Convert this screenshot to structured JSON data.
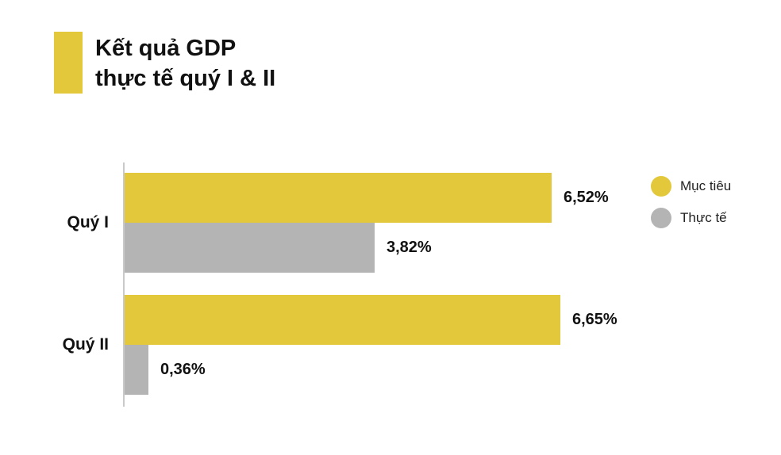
{
  "title": {
    "line1": "Kết quả GDP",
    "line2": "thực tế quý I & II"
  },
  "legend": {
    "items": [
      {
        "label": "Mục tiêu",
        "color": "#e3c83c"
      },
      {
        "label": "Thực tế",
        "color": "#b4b4b4"
      }
    ]
  },
  "chart_data": {
    "type": "bar",
    "orientation": "horizontal",
    "title": "Kết quả GDP thực tế quý I & II",
    "categories": [
      "Quý I",
      "Quý II"
    ],
    "series": [
      {
        "name": "Mục tiêu",
        "color": "#e3c83c",
        "values": [
          6.52,
          6.65
        ],
        "labels": [
          "6,52%",
          "6,65%"
        ]
      },
      {
        "name": "Thực tế",
        "color": "#b4b4b4",
        "values": [
          3.82,
          0.36
        ],
        "labels": [
          "3,82%",
          "0,36%"
        ]
      }
    ],
    "xlim": [
      0,
      8
    ],
    "value_suffix": "%",
    "grid": false,
    "legend_position": "right"
  },
  "colors": {
    "accent_yellow": "#e3c83c",
    "bar_gray": "#b4b4b4",
    "axis": "#c9c9c9",
    "background": "#ffffff",
    "text": "#111111"
  }
}
